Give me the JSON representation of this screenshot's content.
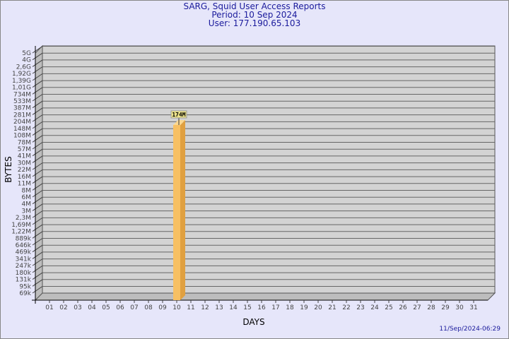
{
  "chart_data": {
    "type": "bar",
    "title": "SARG, Squid User Access Reports",
    "subtitle": [
      "Period: 10 Sep 2024",
      "User: 177.190.65.103"
    ],
    "xlabel": "DAYS",
    "ylabel": "BYTES",
    "categories": [
      "01",
      "02",
      "03",
      "04",
      "05",
      "06",
      "07",
      "08",
      "09",
      "10",
      "11",
      "12",
      "13",
      "14",
      "15",
      "16",
      "17",
      "18",
      "19",
      "20",
      "21",
      "22",
      "23",
      "24",
      "25",
      "26",
      "27",
      "28",
      "29",
      "30",
      "31"
    ],
    "y_tick_labels": [
      "5G",
      "4G",
      "2,6G",
      "1,92G",
      "1,39G",
      "1,01G",
      "734M",
      "533M",
      "387M",
      "281M",
      "204M",
      "148M",
      "108M",
      "78M",
      "57M",
      "41M",
      "30M",
      "22M",
      "16M",
      "11M",
      "8M",
      "6M",
      "4M",
      "3M",
      "2,3M",
      "1,69M",
      "1,22M",
      "889k",
      "646k",
      "469k",
      "341k",
      "247k",
      "180k",
      "131k",
      "95k",
      "69k"
    ],
    "y_tick_values": [
      5000000000,
      4000000000,
      2600000000,
      1920000000,
      1390000000,
      1010000000,
      734000000,
      533000000,
      387000000,
      281000000,
      204000000,
      148000000,
      108000000,
      78000000,
      57000000,
      41000000,
      30000000,
      22000000,
      16000000,
      11000000,
      8000000,
      6000000,
      4000000,
      3000000,
      2300000,
      1690000,
      1220000,
      889000,
      646000,
      469000,
      341000,
      247000,
      180000,
      131000,
      95000,
      69000
    ],
    "y_scale": "log",
    "grid": true,
    "series": [
      {
        "values": [
          null,
          null,
          null,
          null,
          null,
          null,
          null,
          null,
          null,
          174000000,
          null,
          null,
          null,
          null,
          null,
          null,
          null,
          null,
          null,
          null,
          null,
          null,
          null,
          null,
          null,
          null,
          null,
          null,
          null,
          null,
          null
        ],
        "data_labels": {
          "10": "174M"
        }
      }
    ],
    "colors": {
      "bar_front": "#f7c063",
      "bar_side": "#e0a040",
      "plot_bg": "#d3d3d3",
      "grid": "#666666",
      "title": "#1a1a9c",
      "label_bg": "#f0e68c"
    }
  },
  "footer": {
    "timestamp": "11/Sep/2024-06:29"
  }
}
